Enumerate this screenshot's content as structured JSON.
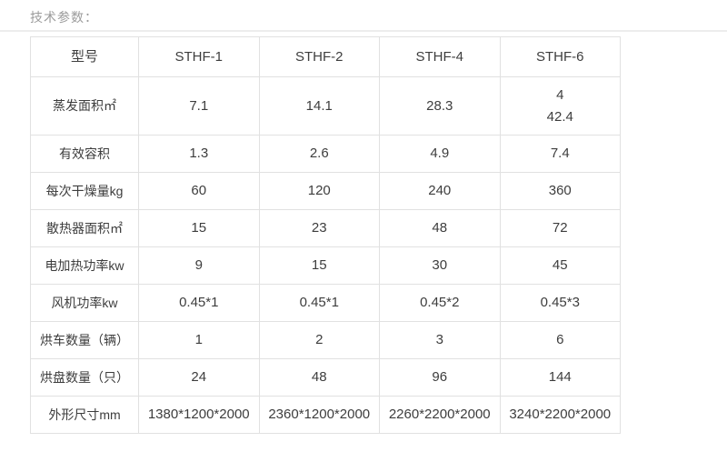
{
  "page": {
    "title": "技术参数："
  },
  "colors": {
    "title_text": "#9c9c9c",
    "cell_text": "#3d3d3d",
    "table_border": "#e1e1e1",
    "divider": "#ededed",
    "background": "#ffffff"
  },
  "table": {
    "columns": [
      "型号",
      "STHF-1",
      "STHF-2",
      "STHF-4",
      "STHF-6"
    ],
    "rows": [
      {
        "label": "蒸发面积㎡",
        "values": [
          "7.1",
          "14.1",
          "28.3",
          "4\n42.4"
        ]
      },
      {
        "label": "有效容积",
        "values": [
          "1.3",
          "2.6",
          "4.9",
          "7.4"
        ]
      },
      {
        "label": "每次干燥量kg",
        "values": [
          "60",
          "120",
          "240",
          "360"
        ]
      },
      {
        "label": "散热器面积㎡",
        "values": [
          "15",
          "23",
          "48",
          "72"
        ]
      },
      {
        "label": "电加热功率kw",
        "values": [
          "9",
          "15",
          "30",
          "45"
        ]
      },
      {
        "label": "风机功率kw",
        "values": [
          "0.45*1",
          "0.45*1",
          "0.45*2",
          "0.45*3"
        ]
      },
      {
        "label": "烘车数量（辆）",
        "values": [
          "1",
          "2",
          "3",
          "6"
        ]
      },
      {
        "label": "烘盘数量（只）",
        "values": [
          "24",
          "48",
          "96",
          "144"
        ]
      },
      {
        "label": "外形尺寸mm",
        "values": [
          "1380*1200*2000",
          "2360*1200*2000",
          "2260*2200*2000",
          "3240*2200*2000"
        ]
      }
    ]
  }
}
